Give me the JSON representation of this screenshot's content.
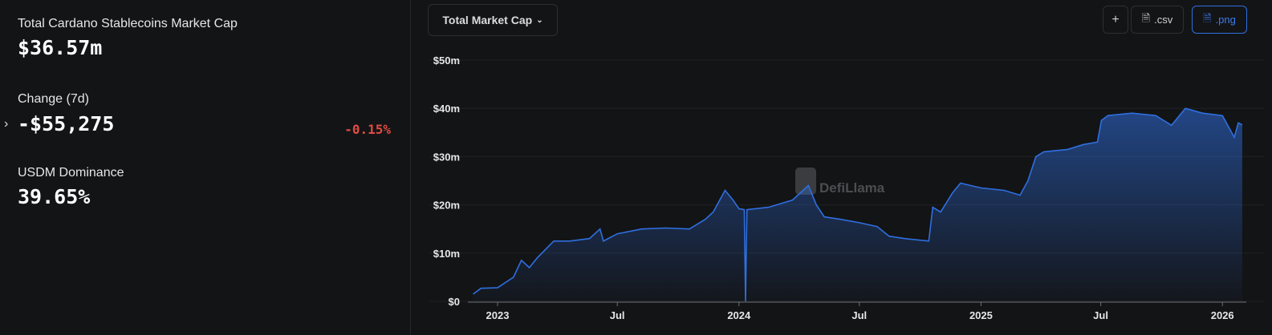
{
  "summary": {
    "market_cap_label": "Total Cardano Stablecoins Market Cap",
    "market_cap_value": "$36.57m",
    "change_label": "Change (7d)",
    "change_value": "-$55,275",
    "change_percent": "-0.15%",
    "dominance_label": "USDM Dominance",
    "dominance_value": "39.65%"
  },
  "toolbar": {
    "metric_select": "Total Market Cap",
    "add_label": "+",
    "csv_label": ".csv",
    "png_label": ".png"
  },
  "watermark": "DefiLlama",
  "colors": {
    "line": "#2f6fe0",
    "negative": "#e04b42",
    "accent": "#3e7cf0"
  },
  "chart_data": {
    "type": "area",
    "title": "",
    "xlabel": "",
    "ylabel": "",
    "ylim": [
      0,
      50000000
    ],
    "y_ticks": [
      "$0",
      "$10m",
      "$20m",
      "$30m",
      "$40m",
      "$50m"
    ],
    "x_ticks": [
      "2023",
      "Jul",
      "2024",
      "Jul",
      "2025",
      "Jul",
      "2026"
    ],
    "x_tick_dates": [
      "2023-01-01",
      "2023-07-01",
      "2024-01-01",
      "2024-07-01",
      "2025-01-01",
      "2025-07-01",
      "2026-01-01"
    ],
    "grid": true,
    "series": [
      {
        "points": [
          [
            "2022-11-25",
            1.5
          ],
          [
            "2022-12-07",
            2.7
          ],
          [
            "2023-01-01",
            2.8
          ],
          [
            "2023-01-25",
            5
          ],
          [
            "2023-02-06",
            8.5
          ],
          [
            "2023-02-18",
            7
          ],
          [
            "2023-03-02",
            9
          ],
          [
            "2023-03-27",
            12.5
          ],
          [
            "2023-04-20",
            12.5
          ],
          [
            "2023-05-20",
            13
          ],
          [
            "2023-06-05",
            15
          ],
          [
            "2023-06-10",
            12.5
          ],
          [
            "2023-07-01",
            14
          ],
          [
            "2023-08-07",
            15
          ],
          [
            "2023-09-12",
            15.2
          ],
          [
            "2023-10-18",
            15
          ],
          [
            "2023-11-11",
            17
          ],
          [
            "2023-11-23",
            18.5
          ],
          [
            "2023-12-11",
            23
          ],
          [
            "2023-12-23",
            21
          ],
          [
            "2024-01-01",
            19.2
          ],
          [
            "2024-01-09",
            19
          ],
          [
            "2024-01-11",
            0
          ],
          [
            "2024-01-13",
            19
          ],
          [
            "2024-02-15",
            19.5
          ],
          [
            "2024-03-22",
            21
          ],
          [
            "2024-04-15",
            24
          ],
          [
            "2024-04-27",
            20
          ],
          [
            "2024-05-09",
            17.5
          ],
          [
            "2024-06-03",
            17
          ],
          [
            "2024-07-01",
            16.3
          ],
          [
            "2024-07-28",
            15.5
          ],
          [
            "2024-08-15",
            13.5
          ],
          [
            "2024-09-08",
            13
          ],
          [
            "2024-10-14",
            12.5
          ],
          [
            "2024-10-20",
            19.5
          ],
          [
            "2024-11-01",
            18.5
          ],
          [
            "2024-11-19",
            22.5
          ],
          [
            "2024-12-01",
            24.5
          ],
          [
            "2025-01-01",
            23.5
          ],
          [
            "2025-02-05",
            23
          ],
          [
            "2025-03-01",
            22
          ],
          [
            "2025-03-13",
            25
          ],
          [
            "2025-03-25",
            30
          ],
          [
            "2025-04-06",
            31
          ],
          [
            "2025-05-12",
            31.5
          ],
          [
            "2025-06-05",
            32.5
          ],
          [
            "2025-06-26",
            33
          ],
          [
            "2025-07-02",
            37.5
          ],
          [
            "2025-07-12",
            38.5
          ],
          [
            "2025-08-17",
            39
          ],
          [
            "2025-09-22",
            38.5
          ],
          [
            "2025-10-16",
            36.5
          ],
          [
            "2025-11-06",
            40
          ],
          [
            "2025-12-02",
            39
          ],
          [
            "2026-01-01",
            38.5
          ],
          [
            "2026-01-19",
            34
          ],
          [
            "2026-01-25",
            37
          ],
          [
            "2026-01-31",
            36.57
          ]
        ],
        "unit": "millions USD"
      }
    ]
  }
}
